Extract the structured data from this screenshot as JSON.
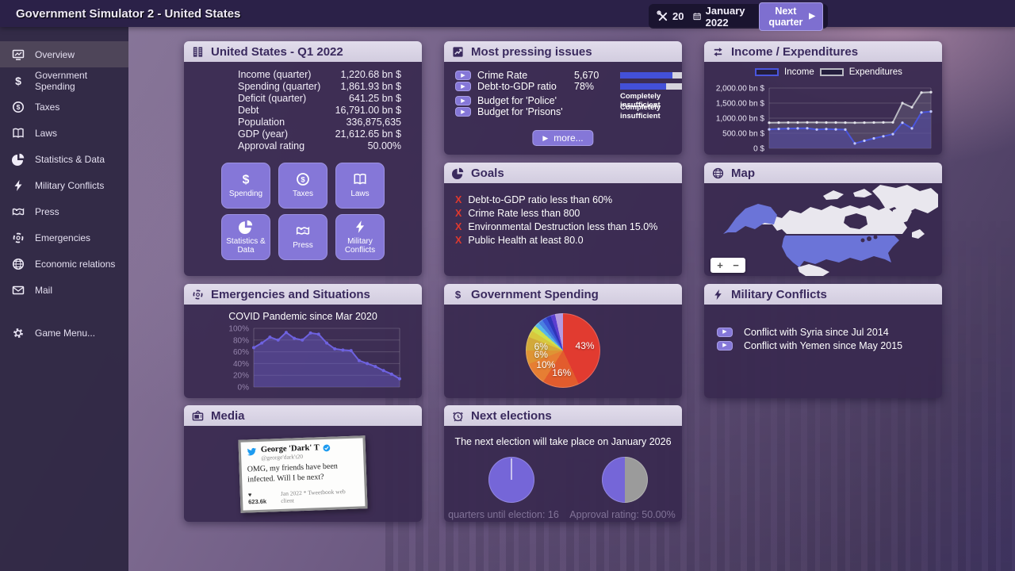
{
  "window": {
    "title": "Government Simulator 2 - United States"
  },
  "topbar": {
    "action_points": "20",
    "date": "January 2022",
    "next_quarter_label": "Next quarter",
    "next_quarter_arrow": "▶"
  },
  "icons": {
    "play_arrow": "▶",
    "heart": "♥",
    "goal_failed": "X",
    "zoom_in": "+",
    "zoom_out": "−"
  },
  "theme": {
    "accent_button": "#8577d8",
    "panel_header": "#d8d3e5",
    "panel_body": "#38294f",
    "progress_fill": "#4350d8",
    "fail_mark": "#e0392e",
    "income_line": "#4a55dd",
    "expenditures_line": "#b9b9c2",
    "election_pie": "#7566d8"
  },
  "sidebar": {
    "items": [
      {
        "label": "Overview",
        "icon": "overview-icon",
        "selected": true
      },
      {
        "label": "Government Spending",
        "icon": "dollar-icon",
        "selected": false
      },
      {
        "label": "Taxes",
        "icon": "coin-icon",
        "selected": false
      },
      {
        "label": "Laws",
        "icon": "book-icon",
        "selected": false
      },
      {
        "label": "Statistics & Data",
        "icon": "pie-icon",
        "selected": false
      },
      {
        "label": "Military Conflicts",
        "icon": "lightning-icon",
        "selected": false
      },
      {
        "label": "Press",
        "icon": "press-icon",
        "selected": false
      },
      {
        "label": "Emergencies",
        "icon": "emergency-icon",
        "selected": false
      },
      {
        "label": "Economic relations",
        "icon": "globe-icon",
        "selected": false
      },
      {
        "label": "Mail",
        "icon": "mail-icon",
        "selected": false
      }
    ],
    "game_menu_label": "Game Menu..."
  },
  "overview_panel": {
    "title": "United States - Q1 2022",
    "stats": [
      {
        "label": "Income (quarter)",
        "value": "1,220.68 bn $"
      },
      {
        "label": "Spending (quarter)",
        "value": "1,861.93 bn $"
      },
      {
        "label": "Deficit (quarter)",
        "value": "641.25 bn $"
      },
      {
        "label": "Debt",
        "value": "16,791.00 bn $"
      },
      {
        "label": "Population",
        "value": "336,875,635"
      },
      {
        "label": "GDP (year)",
        "value": "21,612.65 bn $"
      },
      {
        "label": "Approval rating",
        "value": "50.00%"
      }
    ],
    "tiles": [
      {
        "label": "Spending",
        "icon": "dollar-icon"
      },
      {
        "label": "Taxes",
        "icon": "coin-icon"
      },
      {
        "label": "Laws",
        "icon": "book-icon"
      },
      {
        "label": "Statistics & Data",
        "icon": "pie-icon"
      },
      {
        "label": "Press",
        "icon": "press-icon"
      },
      {
        "label": "Military Conflicts",
        "icon": "lightning-icon"
      }
    ]
  },
  "pressing_issues": {
    "title": "Most pressing issues",
    "items": [
      {
        "label": "Crime Rate",
        "value": "5,670",
        "bar_percent": 62
      },
      {
        "label": "Debt-to-GDP ratio",
        "value": "78%",
        "bar_percent": 55
      },
      {
        "label": "Budget for 'Police'",
        "value": "",
        "status": "Completely insufficient"
      },
      {
        "label": "Budget for 'Prisons'",
        "value": "",
        "status": "Completely insufficient"
      }
    ],
    "more_label": "more..."
  },
  "goals_panel": {
    "title": "Goals",
    "items": [
      "Debt-to-GDP ratio less than 60%",
      "Crime Rate less than 800",
      "Environmental Destruction less than 15.0%",
      "Public Health at least 80.0"
    ]
  },
  "income_panel": {
    "title": "Income / Expenditures"
  },
  "map_panel": {
    "title": "Map"
  },
  "emergencies_panel": {
    "title": "Emergencies and Situations",
    "subtitle": "COVID Pandemic since Mar 2020"
  },
  "spending_panel": {
    "title": "Government Spending"
  },
  "conflicts_panel": {
    "title": "Military Conflicts",
    "items": [
      "Conflict with Syria since Jul 2014",
      "Conflict with Yemen since May 2015"
    ]
  },
  "media_panel": {
    "title": "Media",
    "tweet": {
      "author": "George 'Dark' T",
      "handle": "@george'dark't20",
      "body": "OMG, my friends have been infected. Will I be next?",
      "likes": "623.6k",
      "meta": "Jan 2022 * Tweetbook web client"
    }
  },
  "elections_panel": {
    "title": "Next elections",
    "message": "The next election will take place on January 2026",
    "pie_labels": [
      "quarters until election: 16",
      "Approval rating: 50.00%"
    ]
  },
  "chart_data": [
    {
      "id": "income_expenditures",
      "type": "line",
      "title": "Income / Expenditures",
      "legend": [
        "Income",
        "Expenditures"
      ],
      "legend_position": "top",
      "ylim": [
        0,
        2000
      ],
      "yticks": [
        {
          "value": 2000,
          "label": "2,000.00 bn $"
        },
        {
          "value": 1500,
          "label": "1,500.00 bn $"
        },
        {
          "value": 1000,
          "label": "1,000.00 bn $"
        },
        {
          "value": 500,
          "label": "500.00 bn $"
        },
        {
          "value": 0,
          "label": "0 $"
        }
      ],
      "series": [
        {
          "name": "Expenditures",
          "color": "#b9b9c2",
          "values": [
            850,
            852,
            854,
            856,
            858,
            857,
            856,
            855,
            853,
            851,
            853,
            856,
            858,
            860,
            1500,
            1360,
            1850,
            1862
          ]
        },
        {
          "name": "Income",
          "color": "#4a55dd",
          "values": [
            630,
            645,
            655,
            660,
            665,
            625,
            640,
            630,
            622,
            160,
            250,
            330,
            400,
            470,
            850,
            660,
            1190,
            1220
          ]
        }
      ],
      "x_unit": "quarters"
    },
    {
      "id": "covid",
      "type": "line",
      "title": "COVID Pandemic since Mar 2020",
      "ylim": [
        0,
        100
      ],
      "yticks": [
        {
          "value": 100,
          "label": "100%"
        },
        {
          "value": 80,
          "label": "80%"
        },
        {
          "value": 60,
          "label": "60%"
        },
        {
          "value": 40,
          "label": "40%"
        },
        {
          "value": 20,
          "label": "20%"
        },
        {
          "value": 0,
          "label": "0%"
        }
      ],
      "series": [
        {
          "name": "COVID severity",
          "color": "#6e62e0",
          "values": [
            67,
            75,
            85,
            80,
            93,
            83,
            80,
            92,
            90,
            75,
            65,
            63,
            62,
            45,
            40,
            35,
            28,
            22,
            14
          ]
        }
      ]
    },
    {
      "id": "spending_pie",
      "type": "pie",
      "title": "Government Spending",
      "slices": [
        {
          "value": 43,
          "color": "#e13b30",
          "label": "43%"
        },
        {
          "value": 16,
          "color": "#e25c2d",
          "label": "16%"
        },
        {
          "value": 10,
          "color": "#e67e33",
          "label": "10%"
        },
        {
          "value": 6,
          "color": "#de9434",
          "label": "6%"
        },
        {
          "value": 6,
          "color": "#d2a93a",
          "label": "6%"
        },
        {
          "value": 3,
          "color": "#d8c83e",
          "label": ""
        },
        {
          "value": 2.5,
          "color": "#cfe04c",
          "label": ""
        },
        {
          "value": 2,
          "color": "#57b7e8",
          "label": ""
        },
        {
          "value": 2,
          "color": "#4a7fe0",
          "label": ""
        },
        {
          "value": 2,
          "color": "#3a55d8",
          "label": ""
        },
        {
          "value": 2,
          "color": "#2f35b8",
          "label": ""
        },
        {
          "value": 2,
          "color": "#5b3fd0",
          "label": ""
        },
        {
          "value": 3.5,
          "color": "#b49be0",
          "label": ""
        }
      ]
    },
    {
      "id": "quarters_pie",
      "type": "pie",
      "start_angle": 0,
      "tick_at_top": true,
      "caption": "quarters until election: 16",
      "value": 16,
      "max": 16,
      "slices": [
        {
          "value": 100,
          "color": "#7566d8",
          "label": ""
        }
      ]
    },
    {
      "id": "approval_pie",
      "type": "pie",
      "start_angle": 180,
      "caption": "Approval rating: 50.00%",
      "value": 50,
      "max": 100,
      "slices": [
        {
          "value": 50,
          "color": "#7566d8",
          "label": ""
        },
        {
          "value": 50,
          "color": "#9b9b9b",
          "label": ""
        }
      ]
    }
  ]
}
